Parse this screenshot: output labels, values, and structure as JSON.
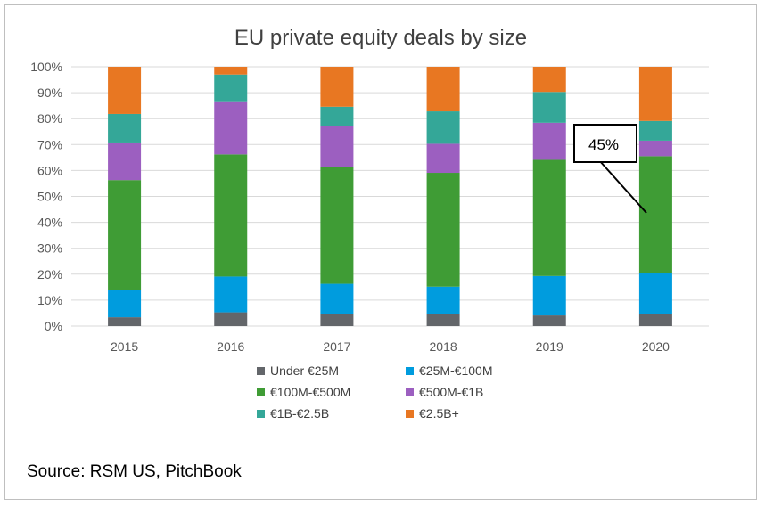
{
  "chart_data": {
    "type": "bar",
    "stacked": true,
    "title": "EU private equity deals by size",
    "categories": [
      "2015",
      "2016",
      "2017",
      "2018",
      "2019",
      "2020"
    ],
    "ylim": [
      0,
      100
    ],
    "yticks": [
      "0%",
      "10%",
      "20%",
      "30%",
      "40%",
      "50%",
      "60%",
      "70%",
      "80%",
      "90%",
      "100%"
    ],
    "grid": true,
    "legend_position": "bottom",
    "series": [
      {
        "name": "Under €25M",
        "color": "#63666a",
        "values": [
          3.4,
          5.3,
          4.6,
          4.6,
          4.1,
          4.8
        ]
      },
      {
        "name": "€25M-€100M",
        "color": "#009cde",
        "values": [
          10.4,
          13.8,
          11.7,
          10.6,
          15.2,
          15.7
        ]
      },
      {
        "name": "€100M-€500M",
        "color": "#3f9c35",
        "values": [
          42.5,
          47.1,
          45.1,
          43.9,
          44.8,
          45.0
        ]
      },
      {
        "name": "€500M-€1B",
        "color": "#9c5fc0",
        "values": [
          14.5,
          20.5,
          15.6,
          11.2,
          14.3,
          6.0
        ]
      },
      {
        "name": "€1B-€2.5B",
        "color": "#34a798",
        "values": [
          11.0,
          10.3,
          7.6,
          12.5,
          11.9,
          7.6
        ]
      },
      {
        "name": "€2.5B+",
        "color": "#e87722",
        "values": [
          18.2,
          3.0,
          15.4,
          17.2,
          9.7,
          20.9
        ]
      }
    ],
    "annotation": {
      "text": "45%",
      "category": "2020",
      "series": "€100M-€500M"
    }
  },
  "source": "Source: RSM US, PitchBook"
}
